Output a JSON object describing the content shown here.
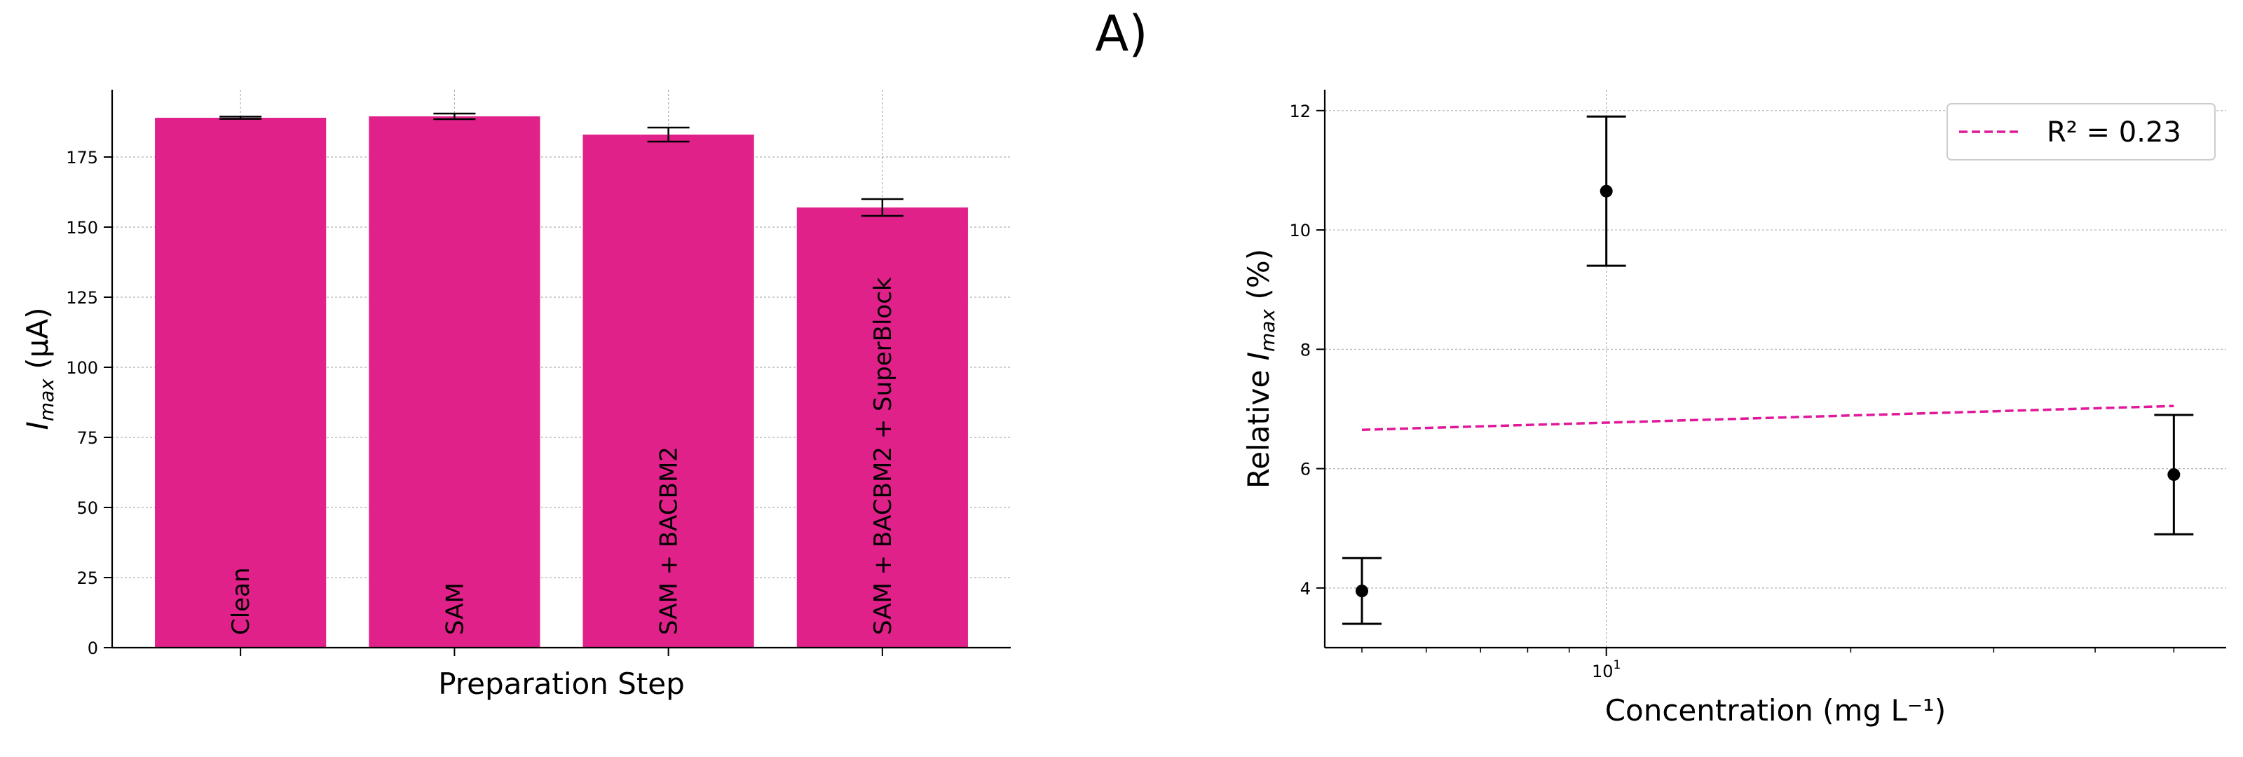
{
  "figure": {
    "title": "A)"
  },
  "colors": {
    "bar": "#e0218a",
    "fit_line": "#e0189a",
    "marker": "#000000"
  },
  "chart_data": [
    {
      "type": "bar",
      "categories": [
        "Clean",
        "SAM",
        "SAM + BACBM2",
        "SAM + BACBM2 + SuperBlock"
      ],
      "values": [
        189,
        189.5,
        183,
        157
      ],
      "errors": [
        0.4,
        1,
        2.5,
        3
      ],
      "xlabel": "Preparation Step",
      "ylabel": "I",
      "ylabel_sub": "max",
      "ylabel_unit": " (μA)",
      "ylim": [
        0,
        199
      ],
      "yticks": [
        0,
        25,
        50,
        75,
        100,
        125,
        150,
        175
      ],
      "grid": true
    },
    {
      "type": "scatter",
      "x_scale": "log",
      "x": [
        5,
        10,
        50
      ],
      "y": [
        3.95,
        10.65,
        5.9
      ],
      "errors": [
        0.55,
        1.25,
        1.0
      ],
      "fit_line": {
        "x": [
          5,
          50
        ],
        "y": [
          6.65,
          7.05
        ],
        "label": "R² = 0.23"
      },
      "legend": "top-right",
      "xlabel": "Concentration (mg L⁻¹)",
      "ylabel_prefix": "Relative ",
      "ylabel_var": "I",
      "ylabel_sub": "max",
      "ylabel_unit": " (%)",
      "xlim": [
        4.5,
        58
      ],
      "ylim": [
        3.0,
        12.35
      ],
      "yticks": [
        4,
        6,
        8,
        10,
        12
      ],
      "xticks": [
        {
          "value": 10,
          "base": "10",
          "exp": "1"
        }
      ],
      "grid": true
    }
  ]
}
